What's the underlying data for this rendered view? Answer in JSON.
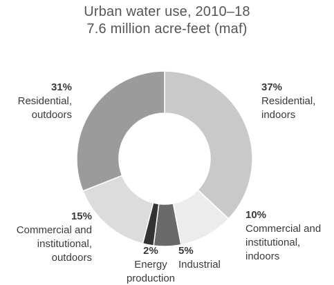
{
  "chart_data": {
    "type": "pie",
    "title": "Urban water use, 2010–18",
    "subtitle": "7.6 million acre-feet (maf)",
    "slices": [
      {
        "percent_label": "37%",
        "label_lines": [
          "Residential,",
          "indoors"
        ],
        "value": 37,
        "color": "#c9c9c9"
      },
      {
        "percent_label": "10%",
        "label_lines": [
          "Commercial and",
          "institutional,",
          "indoors"
        ],
        "value": 10,
        "color": "#ececec"
      },
      {
        "percent_label": "5%",
        "label_lines": [
          "Industrial"
        ],
        "value": 5,
        "color": "#6a6a6a"
      },
      {
        "percent_label": "2%",
        "label_lines": [
          "Energy",
          "production"
        ],
        "value": 2,
        "color": "#333333"
      },
      {
        "percent_label": "15%",
        "label_lines": [
          "Commercial and",
          "institutional,",
          "outdoors"
        ],
        "value": 15,
        "color": "#dcdcdc"
      },
      {
        "percent_label": "31%",
        "label_lines": [
          "Residential,",
          "outdoors"
        ],
        "value": 31,
        "color": "#9b9b9b"
      }
    ]
  }
}
